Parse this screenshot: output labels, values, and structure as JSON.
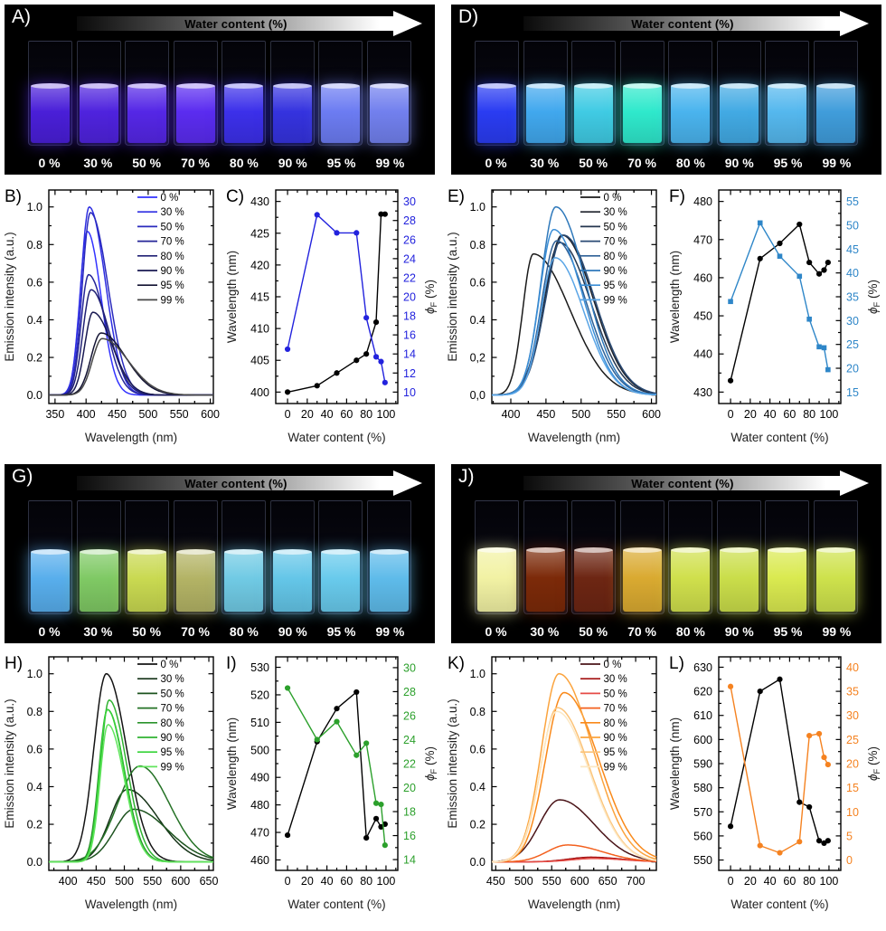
{
  "photos": [
    {
      "id": "A",
      "label": "A)",
      "arrow_label": "Water content (%)",
      "fill_percent": 55,
      "cuvette_labels": [
        "0 %",
        "30 %",
        "50 %",
        "70 %",
        "80 %",
        "90 %",
        "95 %",
        "99 %"
      ],
      "cuvette_colors": [
        "#4a1fd8",
        "#4f23de",
        "#5527e6",
        "#5b2cf0",
        "#3c30ea",
        "#3533df",
        "#6c7cf2",
        "#7280ee"
      ]
    },
    {
      "id": "D",
      "label": "D)",
      "arrow_label": "Water content (%)",
      "fill_percent": 55,
      "cuvette_labels": [
        "0 %",
        "30 %",
        "50 %",
        "70 %",
        "80 %",
        "90 %",
        "95 %",
        "99 %"
      ],
      "cuvette_colors": [
        "#2a3cf2",
        "#41a8ee",
        "#40cbe4",
        "#2fe9cc",
        "#4ab4ee",
        "#42aae4",
        "#55b8ee",
        "#409ddb"
      ]
    },
    {
      "id": "G",
      "label": "G)",
      "arrow_label": "Water content (%)",
      "fill_percent": 53,
      "cuvette_labels": [
        "0 %",
        "30 %",
        "50 %",
        "70 %",
        "80 %",
        "90 %",
        "95 %",
        "99 %"
      ],
      "cuvette_colors": [
        "#58aeec",
        "#7fc964",
        "#c9d951",
        "#b3b365",
        "#70cae4",
        "#64c6e8",
        "#68caec",
        "#5ebbea"
      ]
    },
    {
      "id": "J",
      "label": "J)",
      "arrow_label": "Water content (%)",
      "fill_percent": 55,
      "cuvette_labels": [
        "0 %",
        "30 %",
        "50 %",
        "70 %",
        "80 %",
        "90 %",
        "95 %",
        "99 %"
      ],
      "cuvette_colors": [
        "#f2f2a4",
        "#7c2a09",
        "#6d2613",
        "#daaa31",
        "#d0e04c",
        "#cade4a",
        "#daea50",
        "#cee24c"
      ]
    }
  ],
  "chart_data": [
    {
      "id": "B",
      "panel_label": "B)",
      "type": "spectra",
      "xlabel": "Wavelength (nm)",
      "ylabel": "Emission intensity (a.u.)",
      "xlim": [
        340,
        605
      ],
      "xticks": [
        350,
        400,
        450,
        500,
        550,
        600
      ],
      "yticks": [
        0,
        0.2,
        0.4,
        0.6,
        0.8,
        1.0
      ],
      "ytick_labels": [
        "0.0",
        "0.2",
        "0.4",
        "0.6",
        "0.8",
        "1.0"
      ],
      "series": [
        {
          "label": "0 %",
          "color": "#3333ff",
          "peak": 402,
          "height": 0.87,
          "wl": 12,
          "wr": 22
        },
        {
          "label": "30 %",
          "color": "#2e2ee2",
          "peak": 405,
          "height": 1.0,
          "wl": 13,
          "wr": 26
        },
        {
          "label": "50 %",
          "color": "#2a2abd",
          "peak": 407,
          "height": 0.97,
          "wl": 13,
          "wr": 28
        },
        {
          "label": "70 %",
          "color": "#252598",
          "peak": 404,
          "height": 0.64,
          "wl": 12,
          "wr": 27
        },
        {
          "label": "80 %",
          "color": "#202074",
          "peak": 408,
          "height": 0.56,
          "wl": 13,
          "wr": 29
        },
        {
          "label": "90 %",
          "color": "#1a1a52",
          "peak": 411,
          "height": 0.44,
          "wl": 13,
          "wr": 31
        },
        {
          "label": "95 %",
          "color": "#121232",
          "peak": 424,
          "height": 0.33,
          "wl": 16,
          "wr": 40
        },
        {
          "label": "99 %",
          "color": "#474747",
          "peak": 426,
          "height": 0.3,
          "wl": 16,
          "wr": 42
        }
      ]
    },
    {
      "id": "C",
      "panel_label": "C)",
      "type": "dual",
      "xlabel": "Water content (%)",
      "ylabel_left": "Wavelength (nm)",
      "ylabel_right": "ϕF (%)",
      "x": [
        0,
        30,
        50,
        70,
        80,
        90,
        95,
        99
      ],
      "xticks": [
        0,
        20,
        40,
        60,
        80,
        100
      ],
      "left": {
        "color": "#000000",
        "marker": "circle",
        "ylim": [
          398.2,
          431.8
        ],
        "yticks": [
          400,
          405,
          410,
          415,
          420,
          425,
          430
        ],
        "values": [
          400,
          401,
          403,
          405,
          406,
          411,
          428,
          428
        ]
      },
      "right": {
        "color": "#2222dd",
        "marker": "circle",
        "ylim": [
          8.8,
          31.2
        ],
        "yticks": [
          10,
          12,
          14,
          16,
          18,
          20,
          22,
          24,
          26,
          28,
          30
        ],
        "values": [
          14.5,
          28.6,
          26.7,
          26.7,
          17.8,
          13.7,
          13.2,
          11.0
        ]
      }
    },
    {
      "id": "E",
      "panel_label": "E)",
      "type": "spectra",
      "xlabel": "Wavelength (nm)",
      "ylabel": "Emission intensity (a.u.)",
      "xlim": [
        373,
        607
      ],
      "xticks": [
        400,
        450,
        500,
        550,
        600
      ],
      "yticks": [
        0,
        0.2,
        0.4,
        0.6,
        0.8,
        1.0
      ],
      "ytick_labels": [
        "0,0",
        "0,2",
        "0.4",
        "0.6",
        "0.8",
        "1.0"
      ],
      "series": [
        {
          "label": "0 %",
          "color": "#1a1a1a",
          "peak": 432,
          "height": 0.75,
          "wl": 15,
          "wr": 52
        },
        {
          "label": "30 %",
          "color": "#1d222b",
          "peak": 473,
          "height": 0.85,
          "wl": 24,
          "wr": 44
        },
        {
          "label": "50 %",
          "color": "#24364f",
          "peak": 470,
          "height": 0.81,
          "wl": 24,
          "wr": 44
        },
        {
          "label": "70 %",
          "color": "#2a4a74",
          "peak": 475,
          "height": 0.85,
          "wl": 25,
          "wr": 44
        },
        {
          "label": "80 %",
          "color": "#2e6096",
          "peak": 465,
          "height": 0.82,
          "wl": 21,
          "wr": 42
        },
        {
          "label": "90 %",
          "color": "#2f79bb",
          "peak": 464,
          "height": 1.0,
          "wl": 21,
          "wr": 42
        },
        {
          "label": "95 %",
          "color": "#3b8ed6",
          "peak": 461,
          "height": 0.88,
          "wl": 20,
          "wr": 41
        },
        {
          "label": "99 %",
          "color": "#5aa5e6",
          "peak": 463,
          "height": 0.73,
          "wl": 20,
          "wr": 41
        }
      ]
    },
    {
      "id": "F",
      "panel_label": "F)",
      "type": "dual",
      "xlabel": "Water content (%)",
      "ylabel_left": "Wavelength (nm)",
      "ylabel_right": "ϕF (%)",
      "x": [
        0,
        30,
        50,
        70,
        80,
        90,
        95,
        99
      ],
      "xticks": [
        0,
        20,
        40,
        60,
        80,
        100
      ],
      "left": {
        "color": "#000000",
        "marker": "circle",
        "ylim": [
          427,
          483
        ],
        "yticks": [
          430,
          440,
          450,
          460,
          470,
          480
        ],
        "values": [
          433,
          465,
          469,
          474,
          464,
          461,
          462,
          464
        ]
      },
      "right": {
        "color": "#2e86c8",
        "marker": "square",
        "ylim": [
          12.6,
          57.4
        ],
        "yticks": [
          15,
          20,
          25,
          30,
          35,
          40,
          45,
          50,
          55
        ],
        "values": [
          34,
          50.5,
          43.5,
          39.3,
          30.3,
          24.5,
          24.3,
          19.7
        ]
      }
    },
    {
      "id": "H",
      "panel_label": "H)",
      "type": "spectra",
      "xlabel": "Wavelength (nm)",
      "ylabel": "Emission intensity (a.u.)",
      "xlim": [
        366,
        658
      ],
      "xticks": [
        400,
        450,
        500,
        550,
        600,
        650
      ],
      "yticks": [
        0,
        0.2,
        0.4,
        0.6,
        0.8,
        1.0
      ],
      "ytick_labels": [
        "0.0",
        "0.2",
        "0.4",
        "0.6",
        "0.8",
        "1.0"
      ],
      "series": [
        {
          "label": "0 %",
          "color": "#141414",
          "peak": 468,
          "height": 1.0,
          "wl": 22,
          "wr": 36
        },
        {
          "label": "30 %",
          "color": "#153317",
          "peak": 505,
          "height": 0.385,
          "wl": 30,
          "wr": 55
        },
        {
          "label": "50 %",
          "color": "#1d531f",
          "peak": 517,
          "height": 0.28,
          "wl": 34,
          "wr": 60
        },
        {
          "label": "70 %",
          "color": "#257226",
          "peak": 528,
          "height": 0.51,
          "wl": 40,
          "wr": 52
        },
        {
          "label": "80 %",
          "color": "#2b932c",
          "peak": 470,
          "height": 0.81,
          "wl": 15,
          "wr": 30
        },
        {
          "label": "90 %",
          "color": "#30b232",
          "peak": 473,
          "height": 0.86,
          "wl": 15,
          "wr": 31
        },
        {
          "label": "95 %",
          "color": "#35d337",
          "peak": 470,
          "height": 0.81,
          "wl": 14,
          "wr": 29
        },
        {
          "label": "99 %",
          "color": "#62e55e",
          "peak": 471,
          "height": 0.73,
          "wl": 14,
          "wr": 29
        }
      ]
    },
    {
      "id": "I",
      "panel_label": "I)",
      "type": "dual",
      "xlabel": "Water content (%)",
      "ylabel_left": "Wavelength (nm)",
      "ylabel_right": "ϕF (%)",
      "x": [
        0,
        30,
        50,
        70,
        80,
        90,
        95,
        99
      ],
      "xticks": [
        0,
        20,
        40,
        60,
        80,
        100
      ],
      "left": {
        "color": "#000000",
        "marker": "circle",
        "ylim": [
          456.2,
          533.8
        ],
        "yticks": [
          460,
          470,
          480,
          490,
          500,
          510,
          520,
          530
        ],
        "values": [
          469,
          503,
          515,
          521,
          468,
          475,
          472,
          473
        ]
      },
      "right": {
        "color": "#2ca02c",
        "marker": "circle",
        "ylim": [
          13.1,
          30.9
        ],
        "yticks": [
          14,
          16,
          18,
          20,
          22,
          24,
          26,
          28,
          30
        ],
        "values": [
          28.3,
          24.0,
          25.5,
          22.7,
          23.7,
          18.7,
          18.6,
          15.2
        ]
      }
    },
    {
      "id": "K",
      "panel_label": "K)",
      "type": "spectra",
      "xlabel": "Wavelength (nm)",
      "ylabel": "Emission intensity (a.u.)",
      "xlim": [
        443,
        737
      ],
      "xticks": [
        450,
        500,
        550,
        600,
        650,
        700
      ],
      "yticks": [
        0,
        0.2,
        0.4,
        0.6,
        0.8,
        1.0
      ],
      "ytick_labels": [
        "0.0",
        "0.2",
        "0.4",
        "0.6",
        "0.8",
        "1.0"
      ],
      "series": [
        {
          "label": "0 %",
          "color": "#4a1418",
          "peak": 564,
          "height": 0.33,
          "wl": 36,
          "wr": 62
        },
        {
          "label": "30 %",
          "color": "#a31111",
          "peak": 620,
          "height": 0.025,
          "wl": 40,
          "wr": 55
        },
        {
          "label": "50 %",
          "color": "#e64b45",
          "peak": 625,
          "height": 0.018,
          "wl": 40,
          "wr": 55
        },
        {
          "label": "70 %",
          "color": "#f3611f",
          "peak": 578,
          "height": 0.09,
          "wl": 36,
          "wr": 62
        },
        {
          "label": "80 %",
          "color": "#f9891a",
          "peak": 572,
          "height": 0.9,
          "wl": 33,
          "wr": 62
        },
        {
          "label": "90 %",
          "color": "#fba43e",
          "peak": 563,
          "height": 1.0,
          "wl": 31,
          "wr": 60
        },
        {
          "label": "95 %",
          "color": "#fcc378",
          "peak": 560,
          "height": 0.82,
          "wl": 30,
          "wr": 58
        },
        {
          "label": "99 %",
          "color": "#fce8c4",
          "peak": 559,
          "height": 0.8,
          "wl": 30,
          "wr": 58
        }
      ]
    },
    {
      "id": "L",
      "panel_label": "L)",
      "type": "dual",
      "xlabel": "Water content (%)",
      "ylabel_left": "Wavelength (nm)",
      "ylabel_right": "ϕF (%)",
      "x": [
        0,
        30,
        50,
        70,
        80,
        90,
        95,
        99
      ],
      "xticks": [
        0,
        20,
        40,
        60,
        80,
        100
      ],
      "left": {
        "color": "#000000",
        "marker": "circle",
        "ylim": [
          545.7,
          634.3
        ],
        "yticks": [
          550,
          560,
          570,
          580,
          590,
          600,
          610,
          620,
          630
        ],
        "values": [
          564,
          620,
          625,
          574,
          572,
          558,
          557,
          558
        ]
      },
      "right": {
        "color": "#f58220",
        "marker": "circle",
        "ylim": [
          -2.15,
          42.15
        ],
        "yticks": [
          0,
          5,
          10,
          15,
          20,
          25,
          30,
          35,
          40
        ],
        "values": [
          36,
          3,
          1.5,
          3.8,
          25.8,
          26.2,
          21.3,
          19.8
        ]
      }
    }
  ]
}
